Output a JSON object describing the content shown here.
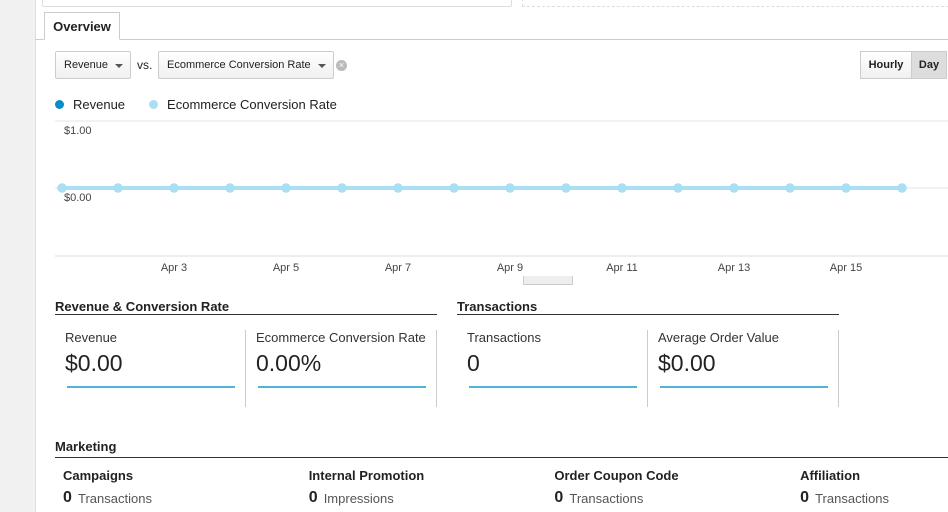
{
  "tabs": [
    "Overview"
  ],
  "controls": {
    "primary_metric": "Revenue",
    "vs": "vs.",
    "compare_metric": "Ecommerce Conversion Rate",
    "granularity": [
      "Hourly",
      "Day"
    ]
  },
  "chart_data": {
    "type": "line",
    "categories": [
      null,
      null,
      "Apr 3",
      null,
      "Apr 5",
      null,
      "Apr 7",
      null,
      "Apr 9",
      null,
      "Apr 11",
      null,
      "Apr 13",
      null,
      "Apr 15",
      null
    ],
    "series": [
      {
        "name": "Revenue",
        "color": "#058dc7",
        "values": [
          0,
          0,
          0,
          0,
          0,
          0,
          0,
          0,
          0,
          0,
          0,
          0,
          0,
          0,
          0,
          0
        ]
      },
      {
        "name": "Ecommerce Conversion Rate",
        "color": "#aadff3",
        "values": [
          0,
          0,
          0,
          0,
          0,
          0,
          0,
          0,
          0,
          0,
          0,
          0,
          0,
          0,
          0,
          0
        ]
      }
    ],
    "ylim": [
      -1,
      1
    ],
    "yticks": [
      {
        "value": 1,
        "label": "$1.00"
      },
      {
        "value": 0,
        "label": "$0.00"
      }
    ],
    "grid": true
  },
  "sections": [
    {
      "title": "Revenue & Conversion Rate",
      "metrics": [
        {
          "label": "Revenue",
          "value": "$0.00"
        },
        {
          "label": "Ecommerce Conversion Rate",
          "value": "0.00%"
        }
      ]
    },
    {
      "title": "Transactions",
      "metrics": [
        {
          "label": "Transactions",
          "value": "0"
        },
        {
          "label": "Average Order Value",
          "value": "$0.00"
        }
      ]
    }
  ],
  "marketing": {
    "title": "Marketing",
    "items": [
      {
        "name": "Campaigns",
        "value": "0",
        "unit": "Transactions"
      },
      {
        "name": "Internal Promotion",
        "value": "0",
        "unit": "Impressions"
      },
      {
        "name": "Order Coupon Code",
        "value": "0",
        "unit": "Transactions"
      },
      {
        "name": "Affiliation",
        "value": "0",
        "unit": "Transactions"
      }
    ]
  }
}
